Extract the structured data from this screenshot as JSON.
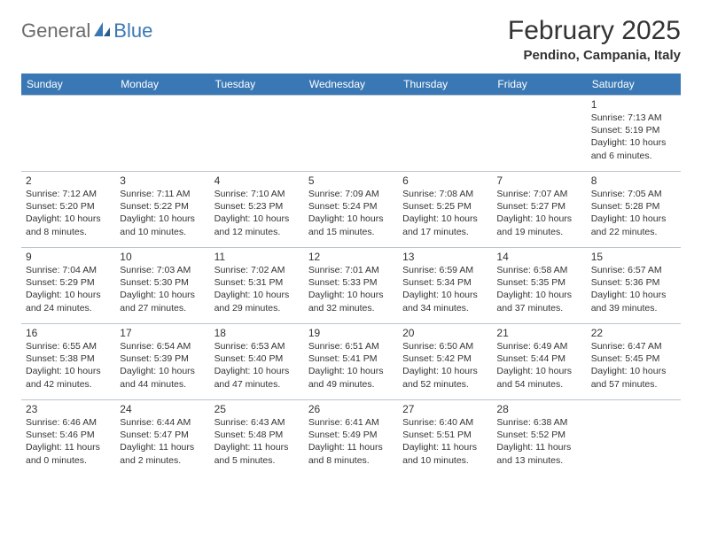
{
  "logo": {
    "text1": "General",
    "text2": "Blue"
  },
  "header": {
    "month_title": "February 2025",
    "location": "Pendino, Campania, Italy"
  },
  "colors": {
    "header_bg": "#3a78b5",
    "header_text": "#ffffff",
    "border": "#b8c5d0",
    "text": "#333333",
    "logo_gray": "#6b6b6b",
    "logo_blue": "#3a78b5",
    "page_bg": "#ffffff"
  },
  "weekdays": [
    "Sunday",
    "Monday",
    "Tuesday",
    "Wednesday",
    "Thursday",
    "Friday",
    "Saturday"
  ],
  "weeks": [
    [
      null,
      null,
      null,
      null,
      null,
      null,
      {
        "n": "1",
        "sr": "Sunrise: 7:13 AM",
        "ss": "Sunset: 5:19 PM",
        "dl": "Daylight: 10 hours and 6 minutes."
      }
    ],
    [
      {
        "n": "2",
        "sr": "Sunrise: 7:12 AM",
        "ss": "Sunset: 5:20 PM",
        "dl": "Daylight: 10 hours and 8 minutes."
      },
      {
        "n": "3",
        "sr": "Sunrise: 7:11 AM",
        "ss": "Sunset: 5:22 PM",
        "dl": "Daylight: 10 hours and 10 minutes."
      },
      {
        "n": "4",
        "sr": "Sunrise: 7:10 AM",
        "ss": "Sunset: 5:23 PM",
        "dl": "Daylight: 10 hours and 12 minutes."
      },
      {
        "n": "5",
        "sr": "Sunrise: 7:09 AM",
        "ss": "Sunset: 5:24 PM",
        "dl": "Daylight: 10 hours and 15 minutes."
      },
      {
        "n": "6",
        "sr": "Sunrise: 7:08 AM",
        "ss": "Sunset: 5:25 PM",
        "dl": "Daylight: 10 hours and 17 minutes."
      },
      {
        "n": "7",
        "sr": "Sunrise: 7:07 AM",
        "ss": "Sunset: 5:27 PM",
        "dl": "Daylight: 10 hours and 19 minutes."
      },
      {
        "n": "8",
        "sr": "Sunrise: 7:05 AM",
        "ss": "Sunset: 5:28 PM",
        "dl": "Daylight: 10 hours and 22 minutes."
      }
    ],
    [
      {
        "n": "9",
        "sr": "Sunrise: 7:04 AM",
        "ss": "Sunset: 5:29 PM",
        "dl": "Daylight: 10 hours and 24 minutes."
      },
      {
        "n": "10",
        "sr": "Sunrise: 7:03 AM",
        "ss": "Sunset: 5:30 PM",
        "dl": "Daylight: 10 hours and 27 minutes."
      },
      {
        "n": "11",
        "sr": "Sunrise: 7:02 AM",
        "ss": "Sunset: 5:31 PM",
        "dl": "Daylight: 10 hours and 29 minutes."
      },
      {
        "n": "12",
        "sr": "Sunrise: 7:01 AM",
        "ss": "Sunset: 5:33 PM",
        "dl": "Daylight: 10 hours and 32 minutes."
      },
      {
        "n": "13",
        "sr": "Sunrise: 6:59 AM",
        "ss": "Sunset: 5:34 PM",
        "dl": "Daylight: 10 hours and 34 minutes."
      },
      {
        "n": "14",
        "sr": "Sunrise: 6:58 AM",
        "ss": "Sunset: 5:35 PM",
        "dl": "Daylight: 10 hours and 37 minutes."
      },
      {
        "n": "15",
        "sr": "Sunrise: 6:57 AM",
        "ss": "Sunset: 5:36 PM",
        "dl": "Daylight: 10 hours and 39 minutes."
      }
    ],
    [
      {
        "n": "16",
        "sr": "Sunrise: 6:55 AM",
        "ss": "Sunset: 5:38 PM",
        "dl": "Daylight: 10 hours and 42 minutes."
      },
      {
        "n": "17",
        "sr": "Sunrise: 6:54 AM",
        "ss": "Sunset: 5:39 PM",
        "dl": "Daylight: 10 hours and 44 minutes."
      },
      {
        "n": "18",
        "sr": "Sunrise: 6:53 AM",
        "ss": "Sunset: 5:40 PM",
        "dl": "Daylight: 10 hours and 47 minutes."
      },
      {
        "n": "19",
        "sr": "Sunrise: 6:51 AM",
        "ss": "Sunset: 5:41 PM",
        "dl": "Daylight: 10 hours and 49 minutes."
      },
      {
        "n": "20",
        "sr": "Sunrise: 6:50 AM",
        "ss": "Sunset: 5:42 PM",
        "dl": "Daylight: 10 hours and 52 minutes."
      },
      {
        "n": "21",
        "sr": "Sunrise: 6:49 AM",
        "ss": "Sunset: 5:44 PM",
        "dl": "Daylight: 10 hours and 54 minutes."
      },
      {
        "n": "22",
        "sr": "Sunrise: 6:47 AM",
        "ss": "Sunset: 5:45 PM",
        "dl": "Daylight: 10 hours and 57 minutes."
      }
    ],
    [
      {
        "n": "23",
        "sr": "Sunrise: 6:46 AM",
        "ss": "Sunset: 5:46 PM",
        "dl": "Daylight: 11 hours and 0 minutes."
      },
      {
        "n": "24",
        "sr": "Sunrise: 6:44 AM",
        "ss": "Sunset: 5:47 PM",
        "dl": "Daylight: 11 hours and 2 minutes."
      },
      {
        "n": "25",
        "sr": "Sunrise: 6:43 AM",
        "ss": "Sunset: 5:48 PM",
        "dl": "Daylight: 11 hours and 5 minutes."
      },
      {
        "n": "26",
        "sr": "Sunrise: 6:41 AM",
        "ss": "Sunset: 5:49 PM",
        "dl": "Daylight: 11 hours and 8 minutes."
      },
      {
        "n": "27",
        "sr": "Sunrise: 6:40 AM",
        "ss": "Sunset: 5:51 PM",
        "dl": "Daylight: 11 hours and 10 minutes."
      },
      {
        "n": "28",
        "sr": "Sunrise: 6:38 AM",
        "ss": "Sunset: 5:52 PM",
        "dl": "Daylight: 11 hours and 13 minutes."
      },
      null
    ]
  ]
}
